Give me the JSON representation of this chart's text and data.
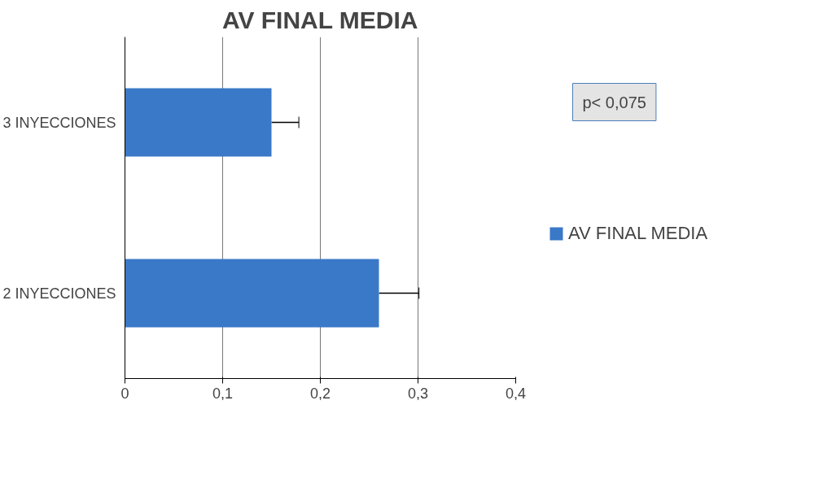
{
  "chart_data": {
    "type": "bar",
    "orientation": "horizontal",
    "title": "AV FINAL MEDIA",
    "categories": [
      "3 INYECCIONES",
      "2 INYECCIONES"
    ],
    "series": [
      {
        "name": "AV FINAL MEDIA",
        "color": "#3a78c8",
        "values": [
          0.15,
          0.26
        ],
        "errors": [
          [
            0.15,
            0.178
          ],
          [
            0.26,
            0.301
          ]
        ]
      }
    ],
    "xlim": [
      0,
      0.4
    ],
    "xticks": [
      0,
      {
        "value": 0.1,
        "label": "0,1"
      },
      {
        "value": 0.2,
        "label": "0,2"
      },
      {
        "value": 0.3,
        "label": "0,3"
      },
      {
        "value": 0.4,
        "label": "0,4"
      }
    ],
    "grid": "x",
    "legend": "right",
    "annotations": [
      "p< 0,075"
    ]
  }
}
